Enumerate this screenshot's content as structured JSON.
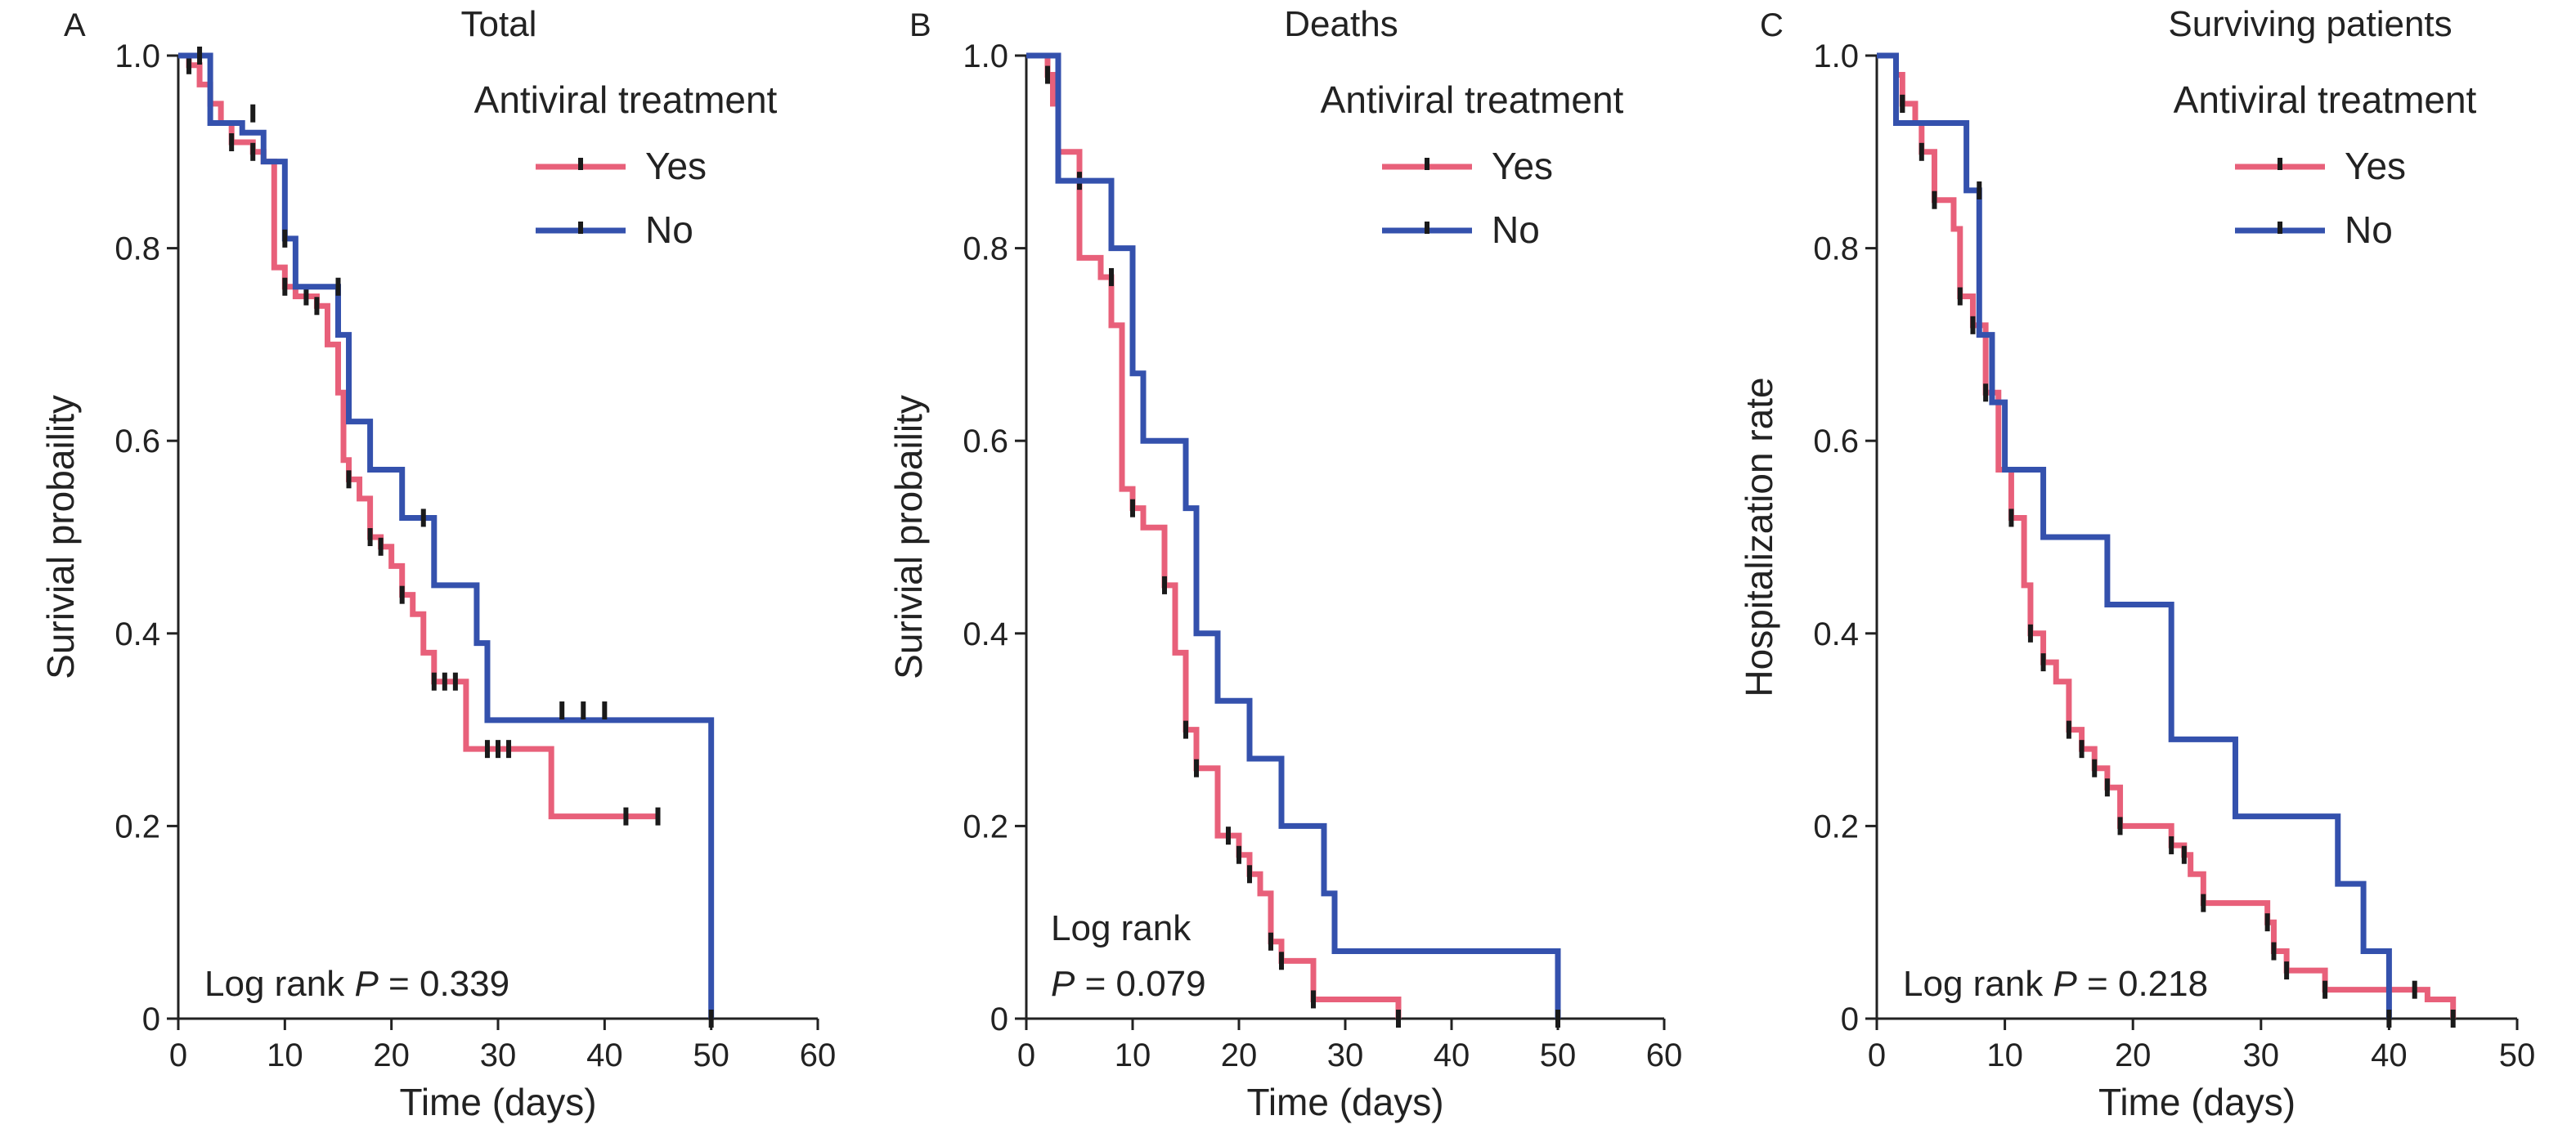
{
  "colors": {
    "yes": "#e8607a",
    "no": "#3451ad",
    "axis": "#222222",
    "censor": "#1a1a1a"
  },
  "chart_data": [
    {
      "type": "line",
      "step": true,
      "letter": "A",
      "title": "Total",
      "xlabel": "Time (days)",
      "ylabel": "Surivial probaility",
      "xlim": [
        0,
        60
      ],
      "ylim": [
        0,
        1
      ],
      "xticks": [
        0,
        10,
        20,
        30,
        40,
        50,
        60
      ],
      "yticks": [
        0,
        0.2,
        0.4,
        0.6,
        0.8,
        1.0
      ],
      "ytick_labels": [
        "0",
        "0.2",
        "0.4",
        "0.6",
        "0.8",
        "1.0"
      ],
      "legend": {
        "title": "Antiviral treatment",
        "position": "top-right"
      },
      "annotation": {
        "text": "Log rank ",
        "p_symbol": "P",
        "p_text": " = 0.339"
      },
      "series": [
        {
          "name": "Yes",
          "color_key": "yes",
          "points": [
            [
              0,
              1.0
            ],
            [
              1,
              0.99
            ],
            [
              2,
              0.97
            ],
            [
              3,
              0.95
            ],
            [
              4,
              0.93
            ],
            [
              5,
              0.91
            ],
            [
              7,
              0.9
            ],
            [
              8,
              0.89
            ],
            [
              9,
              0.87
            ],
            [
              9,
              0.78
            ],
            [
              10,
              0.76
            ],
            [
              11,
              0.75
            ],
            [
              12,
              0.75
            ],
            [
              13,
              0.74
            ],
            [
              14,
              0.7
            ],
            [
              15,
              0.65
            ],
            [
              15.5,
              0.58
            ],
            [
              16,
              0.56
            ],
            [
              17,
              0.54
            ],
            [
              18,
              0.5
            ],
            [
              19,
              0.49
            ],
            [
              20,
              0.47
            ],
            [
              21,
              0.44
            ],
            [
              22,
              0.42
            ],
            [
              23,
              0.38
            ],
            [
              24,
              0.35
            ],
            [
              26,
              0.35
            ],
            [
              27,
              0.28
            ],
            [
              35,
              0.28
            ],
            [
              35,
              0.21
            ],
            [
              45,
              0.21
            ]
          ],
          "censored": [
            [
              1,
              0.99
            ],
            [
              3,
              0.95
            ],
            [
              5,
              0.91
            ],
            [
              7,
              0.9
            ],
            [
              10,
              0.76
            ],
            [
              12,
              0.75
            ],
            [
              13,
              0.74
            ],
            [
              16,
              0.56
            ],
            [
              18,
              0.5
            ],
            [
              19,
              0.49
            ],
            [
              21,
              0.44
            ],
            [
              24,
              0.35
            ],
            [
              25,
              0.35
            ],
            [
              26,
              0.35
            ],
            [
              29,
              0.28
            ],
            [
              30,
              0.28
            ],
            [
              31,
              0.28
            ],
            [
              42,
              0.21
            ],
            [
              45,
              0.21
            ]
          ]
        },
        {
          "name": "No",
          "color_key": "no",
          "points": [
            [
              0,
              1.0
            ],
            [
              3,
              1.0
            ],
            [
              3,
              0.93
            ],
            [
              6,
              0.93
            ],
            [
              6,
              0.92
            ],
            [
              8,
              0.92
            ],
            [
              8,
              0.89
            ],
            [
              10,
              0.89
            ],
            [
              10,
              0.81
            ],
            [
              11,
              0.81
            ],
            [
              11,
              0.76
            ],
            [
              15,
              0.76
            ],
            [
              15,
              0.71
            ],
            [
              16,
              0.71
            ],
            [
              16,
              0.62
            ],
            [
              18,
              0.62
            ],
            [
              18,
              0.57
            ],
            [
              21,
              0.57
            ],
            [
              21,
              0.52
            ],
            [
              24,
              0.52
            ],
            [
              24,
              0.45
            ],
            [
              28,
              0.45
            ],
            [
              28,
              0.39
            ],
            [
              29,
              0.39
            ],
            [
              29,
              0.31
            ],
            [
              50,
              0.31
            ],
            [
              50,
              0.0
            ]
          ],
          "censored": [
            [
              2,
              1.0
            ],
            [
              7,
              0.94
            ],
            [
              10,
              0.81
            ],
            [
              15,
              0.76
            ],
            [
              23,
              0.52
            ],
            [
              36,
              0.32
            ],
            [
              38,
              0.32
            ],
            [
              40,
              0.32
            ],
            [
              50,
              0.0
            ]
          ]
        }
      ]
    },
    {
      "type": "line",
      "step": true,
      "letter": "B",
      "title": "Deaths",
      "xlabel": "Time (days)",
      "ylabel": "Surivial probaility",
      "xlim": [
        0,
        60
      ],
      "ylim": [
        0,
        1
      ],
      "xticks": [
        0,
        10,
        20,
        30,
        40,
        50,
        60
      ],
      "yticks": [
        0,
        0.2,
        0.4,
        0.6,
        0.8,
        1.0
      ],
      "ytick_labels": [
        "0",
        "0.2",
        "0.4",
        "0.6",
        "0.8",
        "1.0"
      ],
      "legend": {
        "title": "Antiviral treatment",
        "position": "top-right"
      },
      "annotation": {
        "text": "Log rank",
        "p_symbol": "P",
        "p_text": " = 0.079"
      },
      "series": [
        {
          "name": "Yes",
          "color_key": "yes",
          "points": [
            [
              0,
              1.0
            ],
            [
              2,
              0.98
            ],
            [
              2.5,
              0.95
            ],
            [
              3,
              0.9
            ],
            [
              5,
              0.87
            ],
            [
              5,
              0.79
            ],
            [
              7,
              0.79
            ],
            [
              7,
              0.77
            ],
            [
              8,
              0.77
            ],
            [
              8,
              0.72
            ],
            [
              9,
              0.72
            ],
            [
              9,
              0.55
            ],
            [
              10,
              0.53
            ],
            [
              11,
              0.51
            ],
            [
              13,
              0.51
            ],
            [
              13,
              0.45
            ],
            [
              14,
              0.45
            ],
            [
              14,
              0.38
            ],
            [
              15,
              0.38
            ],
            [
              15,
              0.3
            ],
            [
              16,
              0.26
            ],
            [
              18,
              0.26
            ],
            [
              18,
              0.19
            ],
            [
              19,
              0.19
            ],
            [
              20,
              0.17
            ],
            [
              21,
              0.15
            ],
            [
              22,
              0.13
            ],
            [
              23,
              0.08
            ],
            [
              24,
              0.06
            ],
            [
              27,
              0.06
            ],
            [
              27,
              0.02
            ],
            [
              35,
              0.02
            ],
            [
              35,
              0.0
            ]
          ],
          "censored": [
            [
              2,
              0.98
            ],
            [
              3,
              0.95
            ],
            [
              5,
              0.87
            ],
            [
              8,
              0.77
            ],
            [
              10,
              0.53
            ],
            [
              13,
              0.45
            ],
            [
              15,
              0.3
            ],
            [
              16,
              0.26
            ],
            [
              19,
              0.19
            ],
            [
              20,
              0.17
            ],
            [
              21,
              0.15
            ],
            [
              23,
              0.08
            ],
            [
              24,
              0.06
            ],
            [
              27,
              0.02
            ],
            [
              35,
              0.0
            ]
          ]
        },
        {
          "name": "No",
          "color_key": "no",
          "points": [
            [
              0,
              1.0
            ],
            [
              3,
              1.0
            ],
            [
              3,
              0.87
            ],
            [
              8,
              0.87
            ],
            [
              8,
              0.8
            ],
            [
              10,
              0.8
            ],
            [
              10,
              0.67
            ],
            [
              11,
              0.67
            ],
            [
              11,
              0.6
            ],
            [
              15,
              0.6
            ],
            [
              15,
              0.53
            ],
            [
              16,
              0.53
            ],
            [
              16,
              0.4
            ],
            [
              18,
              0.4
            ],
            [
              18,
              0.33
            ],
            [
              21,
              0.33
            ],
            [
              21,
              0.27
            ],
            [
              24,
              0.27
            ],
            [
              24,
              0.2
            ],
            [
              28,
              0.2
            ],
            [
              28,
              0.13
            ],
            [
              29,
              0.13
            ],
            [
              29,
              0.07
            ],
            [
              50,
              0.07
            ],
            [
              50,
              0.0
            ]
          ],
          "censored": [
            [
              50,
              0.0
            ]
          ]
        }
      ]
    },
    {
      "type": "line",
      "step": true,
      "letter": "C",
      "title": "Surviving patients",
      "xlabel": "Time (days)",
      "ylabel": "Hospitalization rate",
      "xlim": [
        0,
        50
      ],
      "ylim": [
        0,
        1
      ],
      "xticks": [
        0,
        10,
        20,
        30,
        40,
        50
      ],
      "yticks": [
        0,
        0.2,
        0.4,
        0.6,
        0.8,
        1.0
      ],
      "ytick_labels": [
        "0",
        "0.2",
        "0.4",
        "0.6",
        "0.8",
        "1.0"
      ],
      "legend": {
        "title": "Antiviral treatment",
        "position": "top-right"
      },
      "annotation": {
        "text": "Log rank ",
        "p_symbol": "P",
        "p_text": " = 0.218"
      },
      "series": [
        {
          "name": "Yes",
          "color_key": "yes",
          "points": [
            [
              0,
              1.0
            ],
            [
              1.5,
              0.98
            ],
            [
              2,
              0.95
            ],
            [
              3,
              0.93
            ],
            [
              3.5,
              0.9
            ],
            [
              4.5,
              0.85
            ],
            [
              6,
              0.82
            ],
            [
              6.5,
              0.75
            ],
            [
              7.5,
              0.72
            ],
            [
              8.5,
              0.65
            ],
            [
              9.5,
              0.57
            ],
            [
              10.5,
              0.52
            ],
            [
              11.5,
              0.45
            ],
            [
              12,
              0.4
            ],
            [
              13,
              0.37
            ],
            [
              14,
              0.35
            ],
            [
              15,
              0.3
            ],
            [
              16,
              0.28
            ],
            [
              17,
              0.26
            ],
            [
              18,
              0.24
            ],
            [
              19,
              0.2
            ],
            [
              22,
              0.2
            ],
            [
              23,
              0.18
            ],
            [
              24,
              0.17
            ],
            [
              24.5,
              0.15
            ],
            [
              25.5,
              0.12
            ],
            [
              30,
              0.12
            ],
            [
              30.5,
              0.1
            ],
            [
              31,
              0.07
            ],
            [
              32,
              0.05
            ],
            [
              35,
              0.03
            ],
            [
              42,
              0.03
            ],
            [
              43,
              0.02
            ],
            [
              45,
              0.02
            ],
            [
              45,
              0.0
            ]
          ],
          "censored": [
            [
              2,
              0.95
            ],
            [
              3.5,
              0.9
            ],
            [
              4.5,
              0.85
            ],
            [
              6.5,
              0.75
            ],
            [
              7.5,
              0.72
            ],
            [
              8.5,
              0.65
            ],
            [
              10.5,
              0.52
            ],
            [
              12,
              0.4
            ],
            [
              13,
              0.37
            ],
            [
              15,
              0.3
            ],
            [
              16,
              0.28
            ],
            [
              17,
              0.26
            ],
            [
              18,
              0.24
            ],
            [
              19,
              0.2
            ],
            [
              23,
              0.18
            ],
            [
              24,
              0.17
            ],
            [
              25.5,
              0.12
            ],
            [
              30.5,
              0.1
            ],
            [
              31,
              0.07
            ],
            [
              32,
              0.05
            ],
            [
              35,
              0.03
            ],
            [
              42,
              0.03
            ],
            [
              45,
              0.0
            ]
          ]
        },
        {
          "name": "No",
          "color_key": "no",
          "points": [
            [
              0,
              1.0
            ],
            [
              1.5,
              1.0
            ],
            [
              1.5,
              0.93
            ],
            [
              7,
              0.93
            ],
            [
              7,
              0.86
            ],
            [
              8,
              0.86
            ],
            [
              8,
              0.71
            ],
            [
              9,
              0.71
            ],
            [
              9,
              0.64
            ],
            [
              10,
              0.64
            ],
            [
              10,
              0.57
            ],
            [
              13,
              0.57
            ],
            [
              13,
              0.5
            ],
            [
              18,
              0.5
            ],
            [
              18,
              0.43
            ],
            [
              23,
              0.43
            ],
            [
              23,
              0.29
            ],
            [
              28,
              0.29
            ],
            [
              28,
              0.21
            ],
            [
              36,
              0.21
            ],
            [
              36,
              0.14
            ],
            [
              38,
              0.14
            ],
            [
              38,
              0.07
            ],
            [
              40,
              0.07
            ],
            [
              40,
              0.0
            ]
          ],
          "censored": [
            [
              2,
              0.95
            ],
            [
              8,
              0.86
            ],
            [
              40,
              0.0
            ]
          ]
        }
      ]
    }
  ]
}
